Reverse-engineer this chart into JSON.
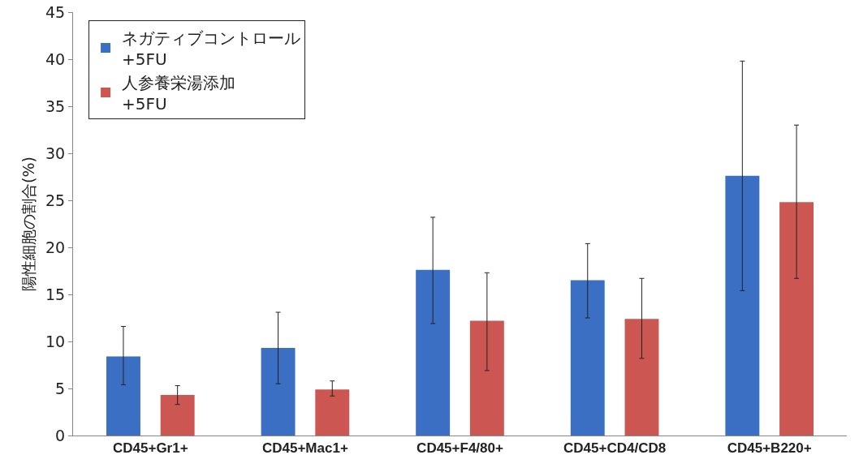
{
  "chart_data": {
    "type": "bar",
    "ylabel": "陽性細胞の割合(%)",
    "categories": [
      "CD45+Gr1+",
      "CD45+Mac1+",
      "CD45+F4/80+",
      "CD45+CD4/CD8",
      "CD45+B220+"
    ],
    "series": [
      {
        "name": "ネガティブコントロール\n+5FU",
        "color": "#3b6fc4",
        "values": [
          8.4,
          9.3,
          17.6,
          16.5,
          27.6
        ],
        "errors": [
          [
            5.4,
            11.6
          ],
          [
            5.5,
            13.1
          ],
          [
            11.9,
            23.2
          ],
          [
            12.5,
            20.4
          ],
          [
            15.4,
            39.8
          ]
        ]
      },
      {
        "name": "人参養栄湯添加\n+5FU",
        "color": "#cc5752",
        "values": [
          4.3,
          4.9,
          12.2,
          12.4,
          24.8
        ],
        "errors": [
          [
            3.3,
            5.3
          ],
          [
            4.2,
            5.8
          ],
          [
            6.9,
            17.3
          ],
          [
            8.2,
            16.7
          ],
          [
            16.7,
            33.0
          ]
        ]
      }
    ],
    "ylim": [
      0,
      45
    ],
    "yticks": [
      0,
      5,
      10,
      15,
      20,
      25,
      30,
      35,
      40,
      45
    ],
    "grid": false,
    "legend": "top left"
  }
}
